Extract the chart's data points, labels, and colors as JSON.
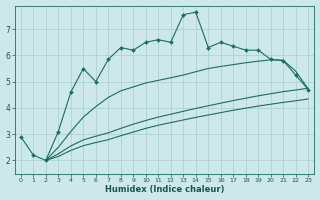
{
  "xlabel": "Humidex (Indice chaleur)",
  "xlim": [
    -0.5,
    23.5
  ],
  "ylim": [
    1.5,
    7.9
  ],
  "yticks": [
    2,
    3,
    4,
    5,
    6,
    7
  ],
  "xticks": [
    0,
    1,
    2,
    3,
    4,
    5,
    6,
    7,
    8,
    9,
    10,
    11,
    12,
    13,
    14,
    15,
    16,
    17,
    18,
    19,
    20,
    21,
    22,
    23
  ],
  "bg_color": "#cce8e8",
  "grid_color": "#aacece",
  "line_color": "#1a6e60",
  "series_marker": {
    "x": [
      0,
      1,
      2,
      3,
      4,
      5,
      6,
      7,
      8,
      9,
      10,
      11,
      12,
      13,
      14,
      15,
      16,
      17,
      18,
      19,
      20,
      21,
      22,
      23
    ],
    "y": [
      2.9,
      2.2,
      2.0,
      3.1,
      4.6,
      5.5,
      5.0,
      5.85,
      6.3,
      6.2,
      6.5,
      6.6,
      6.5,
      7.55,
      7.65,
      6.3,
      6.5,
      6.35,
      6.2,
      6.2,
      5.85,
      5.8,
      5.25,
      4.7
    ]
  },
  "series_upper_smooth": {
    "x": [
      2,
      3,
      4,
      5,
      6,
      7,
      8,
      9,
      10,
      11,
      12,
      13,
      14,
      15,
      16,
      17,
      18,
      19,
      20,
      21,
      22,
      23
    ],
    "y": [
      2.0,
      2.5,
      3.1,
      3.65,
      4.05,
      4.4,
      4.65,
      4.8,
      4.95,
      5.05,
      5.15,
      5.25,
      5.38,
      5.5,
      5.58,
      5.65,
      5.72,
      5.78,
      5.83,
      5.82,
      5.4,
      4.72
    ]
  },
  "series_mid_smooth": {
    "x": [
      2,
      3,
      4,
      5,
      6,
      7,
      8,
      9,
      10,
      11,
      12,
      13,
      14,
      15,
      16,
      17,
      18,
      19,
      20,
      21,
      22,
      23
    ],
    "y": [
      2.0,
      2.25,
      2.55,
      2.78,
      2.92,
      3.05,
      3.22,
      3.38,
      3.52,
      3.65,
      3.76,
      3.87,
      3.98,
      4.08,
      4.18,
      4.28,
      4.37,
      4.46,
      4.54,
      4.62,
      4.68,
      4.75
    ]
  },
  "series_low_smooth": {
    "x": [
      2,
      3,
      4,
      5,
      6,
      7,
      8,
      9,
      10,
      11,
      12,
      13,
      14,
      15,
      16,
      17,
      18,
      19,
      20,
      21,
      22,
      23
    ],
    "y": [
      2.0,
      2.15,
      2.38,
      2.56,
      2.68,
      2.79,
      2.94,
      3.08,
      3.22,
      3.34,
      3.44,
      3.54,
      3.64,
      3.73,
      3.82,
      3.91,
      3.99,
      4.07,
      4.14,
      4.21,
      4.27,
      4.34
    ]
  }
}
